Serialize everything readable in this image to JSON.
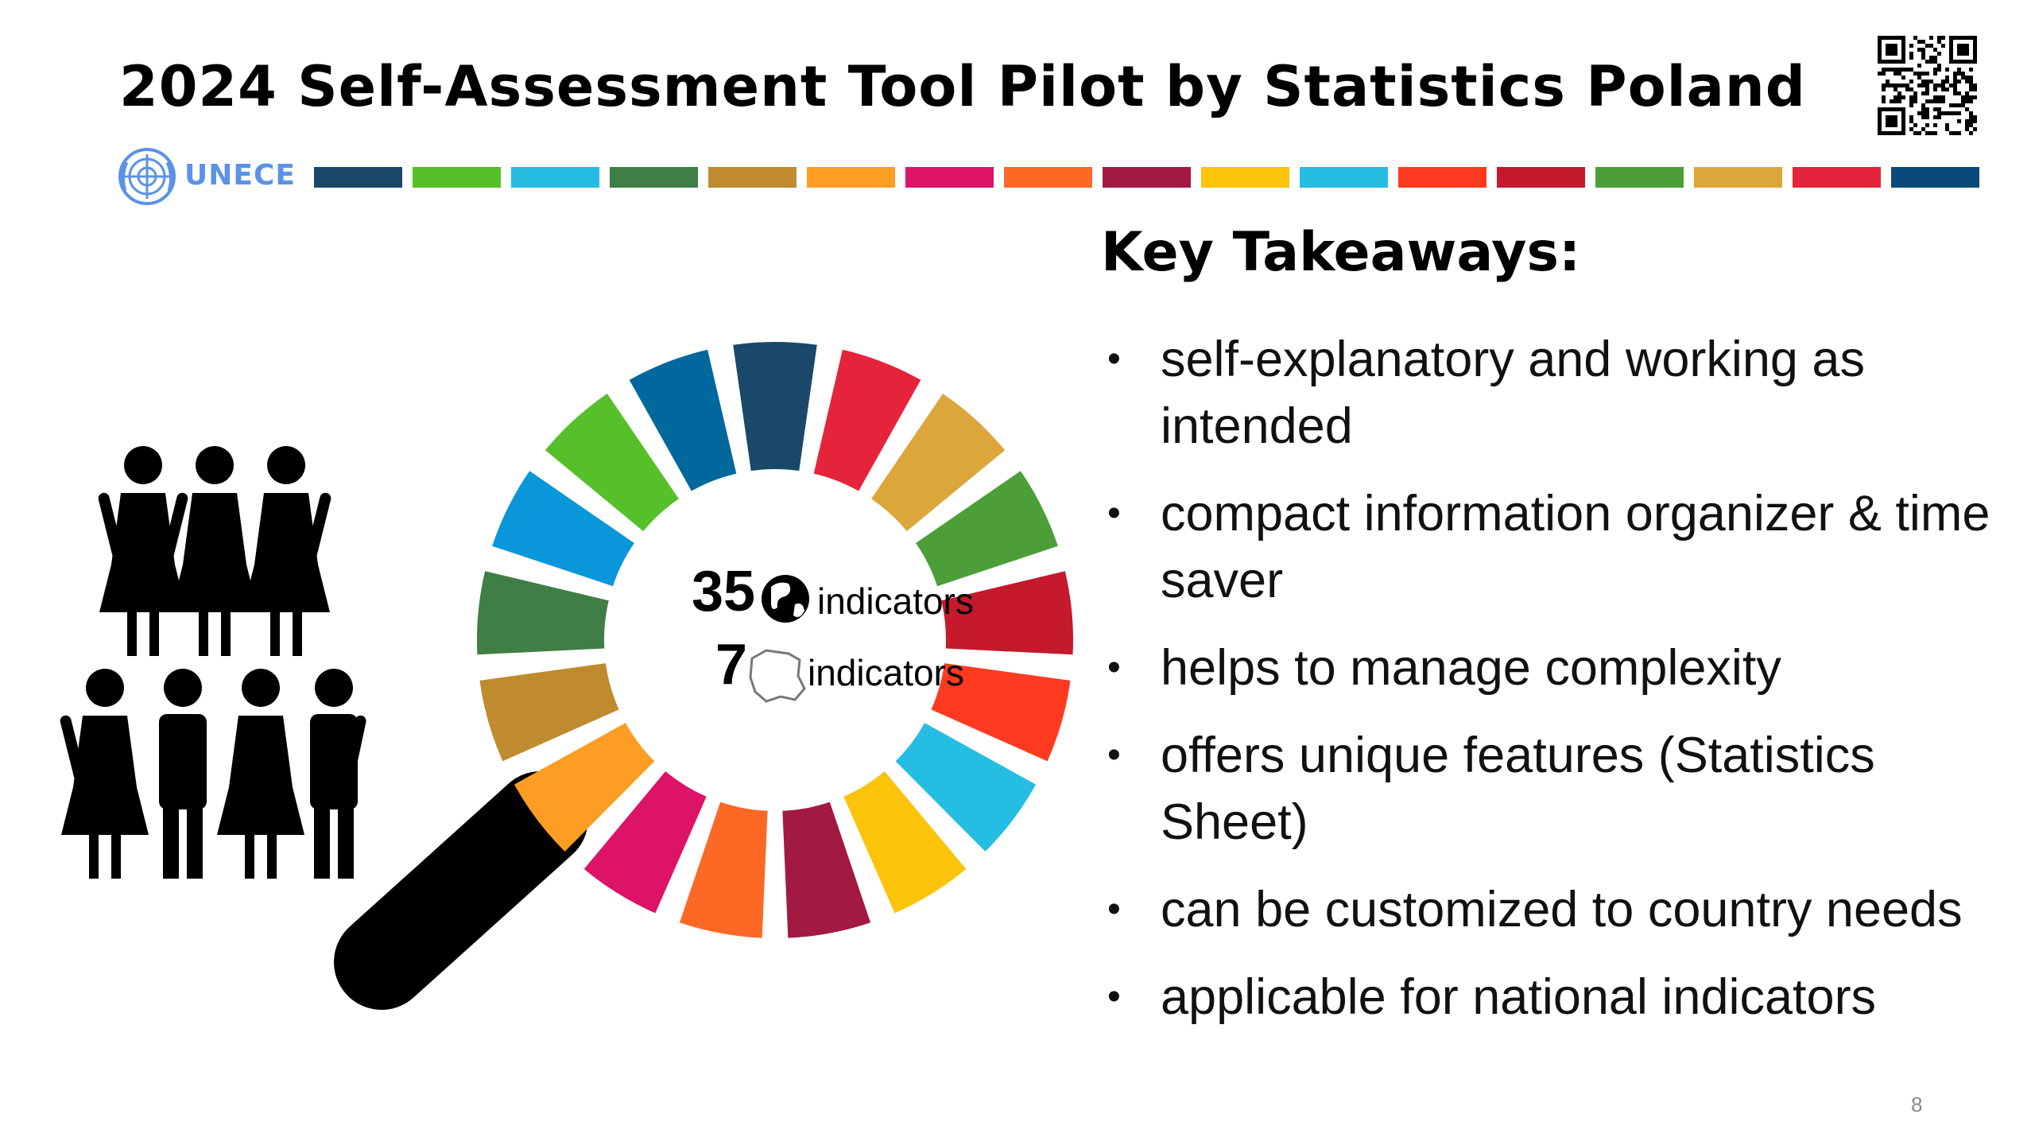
{
  "slide": {
    "title": "2024 Self-Assessment Tool Pilot by Statistics Poland",
    "org_logo_text": "UNECE",
    "brand_color": "#5b92e5",
    "sdg_colors": [
      "#19486a",
      "#56c02b",
      "#26bde2",
      "#3f7e44",
      "#bf8b2e",
      "#fd9d24",
      "#dd1367",
      "#fd6925",
      "#a21942",
      "#fcc30b",
      "#26bde2",
      "#ff3a21",
      "#c5192d",
      "#4c9f38",
      "#dda63a",
      "#e5243b",
      "#0a4a7a"
    ],
    "wheel": {
      "global_count": "35",
      "national_count": "7",
      "global_label": "indicators",
      "national_label": "indicators"
    },
    "key_heading": "Key Takeaways:",
    "bullets": [
      "self-explanatory and working as intended",
      "compact information organizer & time saver",
      "helps to manage complexity",
      "offers unique features (Statistics Sheet)",
      "can be customized to country needs",
      "applicable for national indicators"
    ],
    "page_number": "8",
    "icons": {
      "qr": "qr-code-icon",
      "un": "un-emblem-icon",
      "people": "people-group-icon",
      "magnifier": "magnifying-glass-icon",
      "globe": "globe-icon",
      "poland": "poland-map-icon"
    }
  }
}
